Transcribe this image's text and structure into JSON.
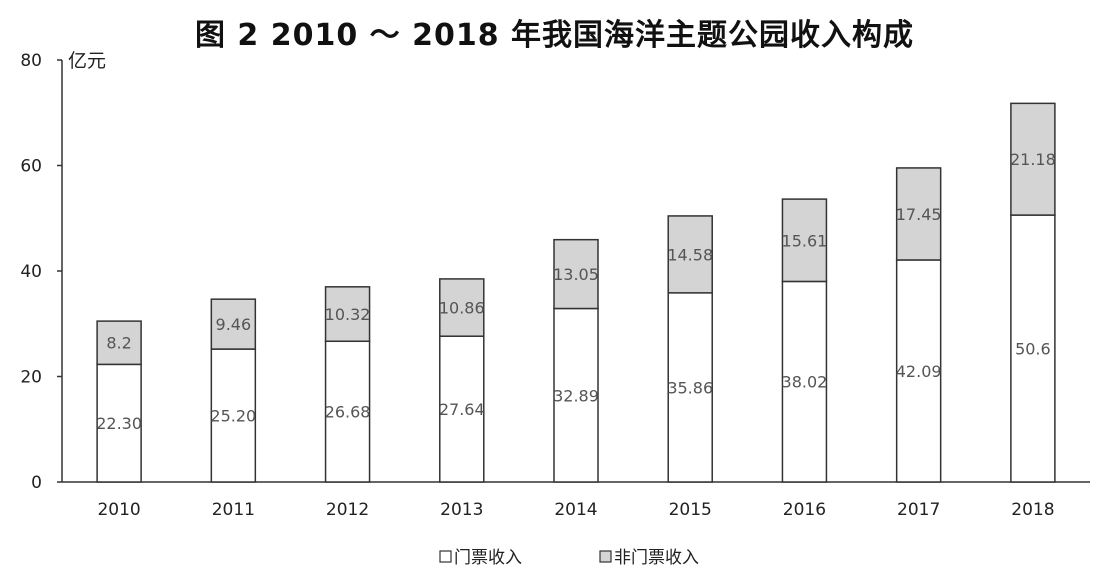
{
  "chart_data": {
    "type": "bar",
    "stacked": true,
    "title": "图 2  2010 ～ 2018 年我国海洋主题公园收入构成",
    "y_unit_label": "亿元",
    "categories": [
      "2010",
      "2011",
      "2012",
      "2013",
      "2014",
      "2015",
      "2016",
      "2017",
      "2018"
    ],
    "series": [
      {
        "name": "门票收入",
        "color": "#ffffff",
        "values": [
          22.3,
          25.2,
          26.68,
          27.64,
          32.89,
          35.86,
          38.02,
          42.09,
          50.6
        ],
        "labels": [
          "22.30",
          "25.20",
          "26.68",
          "27.64",
          "32.89",
          "35.86",
          "38.02",
          "42.09",
          "50.6"
        ]
      },
      {
        "name": "非门票收入",
        "color": "#d4d4d4",
        "values": [
          8.2,
          9.46,
          10.32,
          10.86,
          13.05,
          14.58,
          15.61,
          17.45,
          21.18
        ],
        "labels": [
          "8.2",
          "9.46",
          "10.32",
          "10.86",
          "13.05",
          "14.58",
          "15.61",
          "17.45",
          "21.18"
        ]
      }
    ],
    "ylim": [
      0,
      80
    ],
    "yticks": [
      0,
      20,
      40,
      60,
      80
    ],
    "grid": false,
    "legend_position": "bottom-center"
  }
}
